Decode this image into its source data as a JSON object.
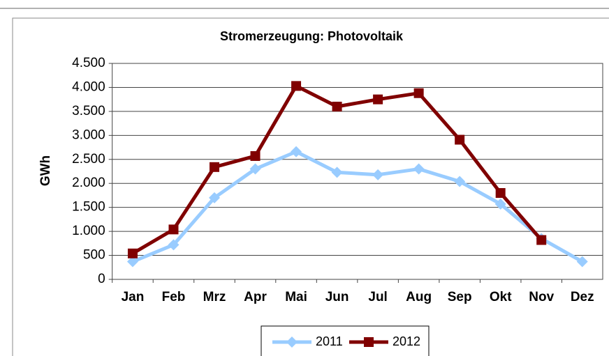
{
  "chart_data": {
    "type": "line",
    "title": "Stromerzeugung: Photovoltaik",
    "y_label": "GWh",
    "categories": [
      "Jan",
      "Feb",
      "Mrz",
      "Apr",
      "Mai",
      "Jun",
      "Jul",
      "Aug",
      "Sep",
      "Okt",
      "Nov",
      "Dez"
    ],
    "series": [
      {
        "name": "2011",
        "color": "#99ccff",
        "marker": "diamond",
        "values": [
          370,
          720,
          1700,
          2300,
          2660,
          2230,
          2180,
          2300,
          2040,
          1570,
          850,
          370
        ]
      },
      {
        "name": "2012",
        "color": "#800000",
        "marker": "square",
        "values": [
          540,
          1040,
          2340,
          2570,
          4030,
          3600,
          3750,
          3880,
          2910,
          1800,
          820,
          null
        ]
      }
    ],
    "ylim": [
      0,
      4500
    ],
    "yticks": [
      0,
      500,
      {
        "value": 1000,
        "label": "1.000"
      },
      {
        "value": 1500,
        "label": "1.500"
      },
      {
        "value": 2000,
        "label": "2.000"
      },
      {
        "value": 2500,
        "label": "2.500"
      },
      {
        "value": 3000,
        "label": "3.000"
      },
      {
        "value": 3500,
        "label": "3.500"
      },
      {
        "value": 4000,
        "label": "4.000"
      },
      {
        "value": 4500,
        "label": "4.500"
      }
    ],
    "grid": true,
    "legend": "bottom"
  }
}
